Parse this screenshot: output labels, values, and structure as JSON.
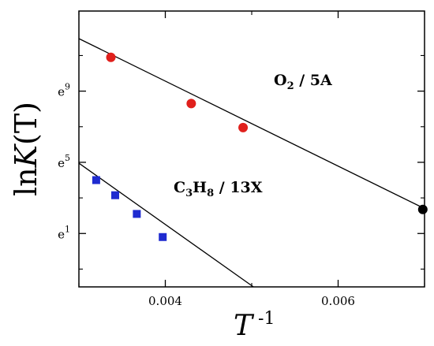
{
  "chart_data": {
    "type": "scatter",
    "xlabel": {
      "base": "T",
      "sup": " -1"
    },
    "ylabel": {
      "prefix": "ln",
      "italic": "K",
      "suffix": "(T)"
    },
    "xlim": [
      0.003,
      0.007
    ],
    "ylim": [
      -2,
      13.5
    ],
    "x_ticks": [
      {
        "value": 0.004,
        "label": "0.004"
      },
      {
        "value": 0.006,
        "label": "0.006"
      }
    ],
    "x_minor_ticks": [
      0.003,
      0.005,
      0.007
    ],
    "y_ticks": [
      {
        "value": 1,
        "base": "e",
        "exp": "1"
      },
      {
        "value": 5,
        "base": "e",
        "exp": "5"
      },
      {
        "value": 9,
        "base": "e",
        "exp": "9"
      }
    ],
    "y_minor_ticks": [
      -1,
      3,
      7,
      11
    ],
    "series": [
      {
        "label_parts": [
          {
            "t": "O",
            "sub": false
          },
          {
            "t": "2",
            "sub": true
          },
          {
            "t": " / 5A",
            "sub": false
          }
        ],
        "marker": "circle",
        "color": "#e0201c",
        "x": [
          0.00337,
          0.0043,
          0.0049
        ],
        "y": [
          10.9,
          8.3,
          6.95
        ],
        "fit": {
          "x": [
            0.003,
            0.007
          ],
          "y": [
            11.95,
            2.4
          ]
        },
        "extra_point": {
          "x": 0.00698,
          "y": 2.35,
          "color": "#000000"
        }
      },
      {
        "label_parts": [
          {
            "t": "C",
            "sub": false
          },
          {
            "t": "3",
            "sub": true
          },
          {
            "t": "H",
            "sub": false
          },
          {
            "t": "8",
            "sub": true
          },
          {
            "t": " / 13X",
            "sub": false
          }
        ],
        "marker": "square",
        "color": "#1f2bd0",
        "x": [
          0.0032,
          0.00342,
          0.00367,
          0.00397
        ],
        "y": [
          4.0,
          3.15,
          2.1,
          0.8
        ],
        "fit": {
          "x": [
            0.003,
            0.00502
          ],
          "y": [
            4.95,
            -2.0
          ]
        }
      }
    ]
  }
}
